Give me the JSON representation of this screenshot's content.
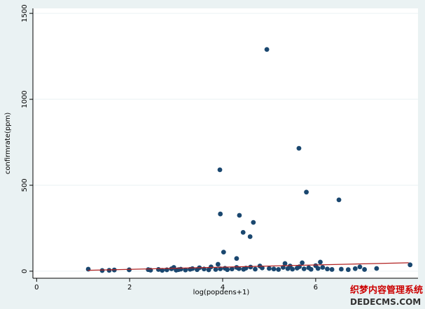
{
  "chart_data": {
    "type": "scatter",
    "x_label": "log(popdens+1)",
    "y_label": "confirmrate(ppm)",
    "xlim": [
      -0.08,
      8.2
    ],
    "ylim": [
      -41,
      1529
    ],
    "xticks": [
      0,
      2,
      4,
      6
    ],
    "yticks": [
      0,
      500,
      1000,
      1500
    ],
    "grid": true,
    "series": [
      {
        "color": "#1a476f",
        "x": [
          1.11,
          1.41,
          1.56,
          1.67,
          1.99,
          2.4,
          2.45,
          2.62,
          2.7,
          2.8,
          2.9,
          2.95,
          3.0,
          3.05,
          3.1,
          3.2,
          3.3,
          3.35,
          3.45,
          3.5,
          3.6,
          3.7,
          3.75,
          3.85,
          3.9,
          3.95,
          4.05,
          4.1,
          4.2,
          4.3,
          4.35,
          4.45,
          4.5,
          4.6,
          4.7,
          4.8,
          4.85,
          5.0,
          5.1,
          5.2,
          5.3,
          5.4,
          5.45,
          5.5,
          5.6,
          5.65,
          5.75,
          5.85,
          5.9,
          6.0,
          6.05,
          6.15,
          6.25,
          6.35,
          6.55,
          6.7,
          6.85,
          6.95,
          7.05,
          7.31,
          8.03,
          4.95,
          5.64,
          3.94,
          5.8,
          6.5,
          3.95,
          4.36,
          4.66,
          4.44,
          4.59,
          4.02,
          4.3,
          6.1,
          5.71,
          5.34
        ],
        "values": [
          12,
          4,
          5,
          7,
          8,
          9,
          6,
          10,
          5,
          8,
          14,
          22,
          6,
          9,
          12,
          7,
          11,
          15,
          9,
          20,
          13,
          8,
          25,
          10,
          40,
          14,
          17,
          9,
          13,
          22,
          15,
          11,
          18,
          24,
          12,
          30,
          19,
          16,
          13,
          10,
          22,
          15,
          30,
          12,
          18,
          26,
          14,
          20,
          11,
          32,
          16,
          22,
          13,
          10,
          12,
          9,
          15,
          25,
          10,
          16,
          37,
          1290,
          715,
          590,
          460,
          415,
          333,
          325,
          284,
          226,
          201,
          111,
          74,
          53,
          49,
          45
        ]
      },
      {
        "type": "line",
        "color": "#b22222",
        "x": [
          1.1,
          8.0
        ],
        "values": [
          5,
          49
        ]
      }
    ]
  },
  "watermark": {
    "line1": "织梦内容管理系统",
    "line2": "DEDECMS.COM"
  }
}
